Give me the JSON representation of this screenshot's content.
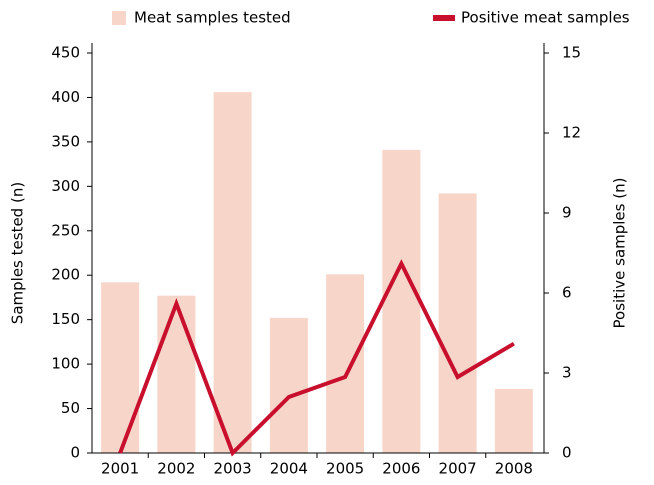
{
  "chart_data": {
    "type": "bar_line",
    "categories": [
      "2001",
      "2002",
      "2003",
      "2004",
      "2005",
      "2006",
      "2007",
      "2008"
    ],
    "series": [
      {
        "name": "Meat samples tested",
        "type": "bar",
        "color": "#f7d5c8",
        "values": [
          192,
          177,
          406,
          152,
          201,
          341,
          292,
          72
        ]
      },
      {
        "name": "Positive meat samples",
        "type": "line",
        "axis": "y2",
        "color": "#c8102e",
        "values": [
          0,
          5.6,
          0,
          2.1,
          2.85,
          7.1,
          2.85,
          4.1
        ]
      }
    ],
    "y_label": "Samples tested (n)",
    "y2_label": "Positive samples (n)",
    "ylim": [
      0,
      450
    ],
    "yticks": [
      0,
      50,
      100,
      150,
      200,
      250,
      300,
      350,
      400,
      450
    ],
    "y2lim": [
      0,
      15
    ],
    "y2ticks": [
      0,
      3,
      6,
      9,
      12,
      15
    ],
    "legend": "top"
  }
}
